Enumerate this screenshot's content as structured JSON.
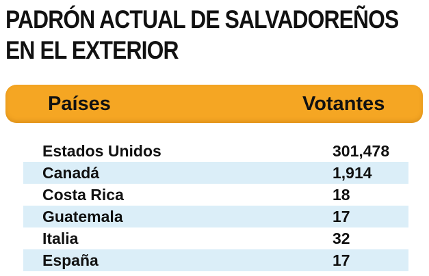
{
  "title_lines": [
    "PADRÓN ACTUAL DE SALVADOREÑOS",
    "EN EL EXTERIOR"
  ],
  "header": {
    "country": "Países",
    "votes": "Votantes"
  },
  "rows": [
    {
      "country": "Estados Unidos",
      "votes": "301,478"
    },
    {
      "country": "Canadá",
      "votes": "1,914"
    },
    {
      "country": "Costa Rica",
      "votes": "18"
    },
    {
      "country": "Guatemala",
      "votes": "17"
    },
    {
      "country": "Italia",
      "votes": "32"
    },
    {
      "country": "España",
      "votes": "17"
    }
  ],
  "colors": {
    "header_bg": "#f5a623",
    "row_alt_bg": "#dbeef8",
    "text": "#111111"
  },
  "chart_data": {
    "type": "table",
    "title": "PADRÓN ACTUAL DE SALVADOREÑOS EN EL EXTERIOR",
    "columns": [
      "Países",
      "Votantes"
    ],
    "categories": [
      "Estados Unidos",
      "Canadá",
      "Costa Rica",
      "Guatemala",
      "Italia",
      "España"
    ],
    "values": [
      301478,
      1914,
      18,
      17,
      32,
      17
    ]
  }
}
